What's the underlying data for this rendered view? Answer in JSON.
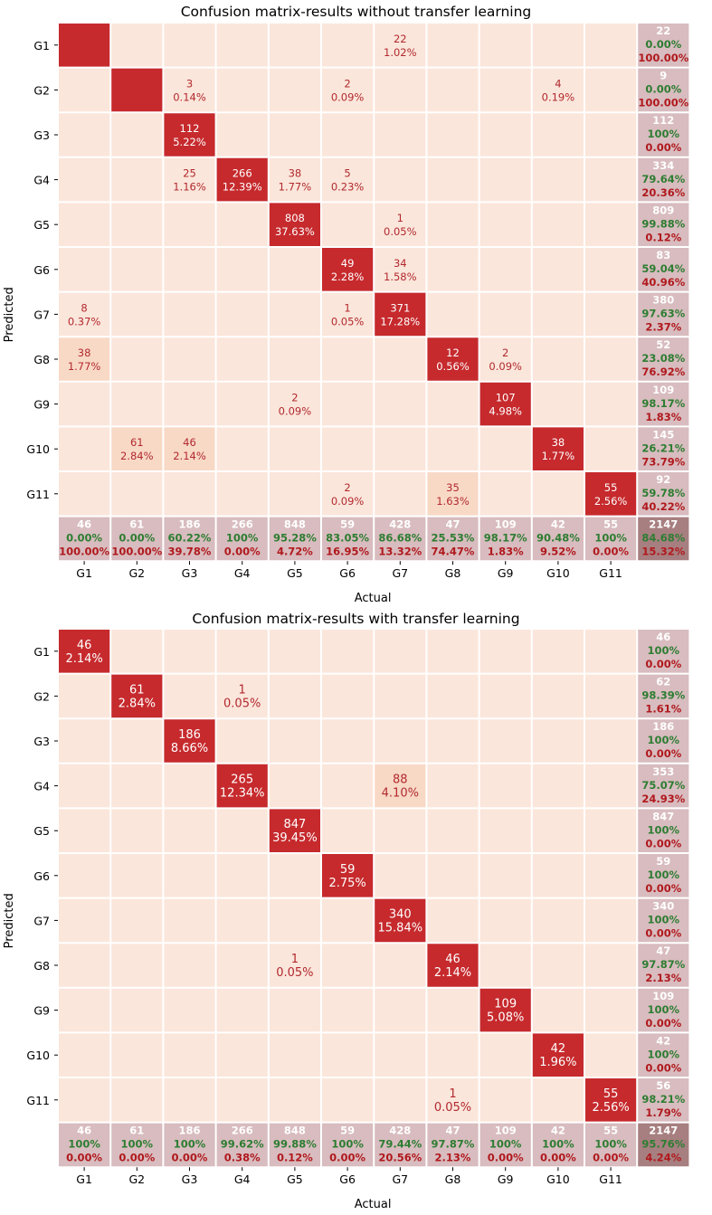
{
  "colors": {
    "background_cell": "#fbe6db",
    "light_cell": "#f8d9c6",
    "diagonal_cell": "#c62a2d",
    "summary_cell": "#d8bcbf",
    "corner_cell": "#a77f80",
    "cell_text_red": "#b2292e",
    "diag_text": "#ffffff",
    "summary_count_text": "#ffffff",
    "summary_good_text": "#2e7d32",
    "summary_bad_text": "#b0191d",
    "grid_line": "#ffffff"
  },
  "chart_data": [
    {
      "type": "heatmap",
      "title": "Confusion matrix-results without transfer learning",
      "xlabel": "Actual",
      "ylabel": "Predicted",
      "classes": [
        "G1",
        "G2",
        "G3",
        "G4",
        "G5",
        "G6",
        "G7",
        "G8",
        "G9",
        "G10",
        "G11"
      ],
      "cells": [
        {
          "r": 0,
          "c": 0,
          "n": "",
          "p": "",
          "diag": true
        },
        {
          "r": 0,
          "c": 6,
          "n": "22",
          "p": "1.02%"
        },
        {
          "r": 1,
          "c": 1,
          "n": "",
          "p": "",
          "diag": true
        },
        {
          "r": 1,
          "c": 2,
          "n": "3",
          "p": "0.14%"
        },
        {
          "r": 1,
          "c": 5,
          "n": "2",
          "p": "0.09%"
        },
        {
          "r": 1,
          "c": 9,
          "n": "4",
          "p": "0.19%"
        },
        {
          "r": 2,
          "c": 2,
          "n": "112",
          "p": "5.22%",
          "diag": true
        },
        {
          "r": 3,
          "c": 2,
          "n": "25",
          "p": "1.16%"
        },
        {
          "r": 3,
          "c": 3,
          "n": "266",
          "p": "12.39%",
          "diag": true
        },
        {
          "r": 3,
          "c": 4,
          "n": "38",
          "p": "1.77%"
        },
        {
          "r": 3,
          "c": 5,
          "n": "5",
          "p": "0.23%"
        },
        {
          "r": 4,
          "c": 4,
          "n": "808",
          "p": "37.63%",
          "diag": true
        },
        {
          "r": 4,
          "c": 6,
          "n": "1",
          "p": "0.05%"
        },
        {
          "r": 5,
          "c": 5,
          "n": "49",
          "p": "2.28%",
          "diag": true
        },
        {
          "r": 5,
          "c": 6,
          "n": "34",
          "p": "1.58%"
        },
        {
          "r": 6,
          "c": 0,
          "n": "8",
          "p": "0.37%"
        },
        {
          "r": 6,
          "c": 5,
          "n": "1",
          "p": "0.05%"
        },
        {
          "r": 6,
          "c": 6,
          "n": "371",
          "p": "17.28%",
          "diag": true
        },
        {
          "r": 7,
          "c": 0,
          "n": "38",
          "p": "1.77%",
          "light": true
        },
        {
          "r": 7,
          "c": 7,
          "n": "12",
          "p": "0.56%",
          "diag": true
        },
        {
          "r": 7,
          "c": 8,
          "n": "2",
          "p": "0.09%"
        },
        {
          "r": 8,
          "c": 4,
          "n": "2",
          "p": "0.09%"
        },
        {
          "r": 8,
          "c": 8,
          "n": "107",
          "p": "4.98%",
          "diag": true
        },
        {
          "r": 9,
          "c": 1,
          "n": "61",
          "p": "2.84%",
          "light": true
        },
        {
          "r": 9,
          "c": 2,
          "n": "46",
          "p": "2.14%",
          "light": true
        },
        {
          "r": 9,
          "c": 9,
          "n": "38",
          "p": "1.77%",
          "diag": true
        },
        {
          "r": 10,
          "c": 5,
          "n": "2",
          "p": "0.09%"
        },
        {
          "r": 10,
          "c": 7,
          "n": "35",
          "p": "1.63%",
          "light": true
        },
        {
          "r": 10,
          "c": 10,
          "n": "55",
          "p": "2.56%",
          "diag": true
        }
      ],
      "row_summary": [
        [
          "22",
          "0.00%",
          "100.00%"
        ],
        [
          "9",
          "0.00%",
          "100.00%"
        ],
        [
          "112",
          "100%",
          "0.00%"
        ],
        [
          "334",
          "79.64%",
          "20.36%"
        ],
        [
          "809",
          "99.88%",
          "0.12%"
        ],
        [
          "83",
          "59.04%",
          "40.96%"
        ],
        [
          "380",
          "97.63%",
          "2.37%"
        ],
        [
          "52",
          "23.08%",
          "76.92%"
        ],
        [
          "109",
          "98.17%",
          "1.83%"
        ],
        [
          "145",
          "26.21%",
          "73.79%"
        ],
        [
          "92",
          "59.78%",
          "40.22%"
        ]
      ],
      "col_summary": [
        [
          "46",
          "0.00%",
          "100.00%"
        ],
        [
          "61",
          "0.00%",
          "100.00%"
        ],
        [
          "186",
          "60.22%",
          "39.78%"
        ],
        [
          "266",
          "100%",
          "0.00%"
        ],
        [
          "848",
          "95.28%",
          "4.72%"
        ],
        [
          "59",
          "83.05%",
          "16.95%"
        ],
        [
          "428",
          "86.68%",
          "13.32%"
        ],
        [
          "47",
          "25.53%",
          "74.47%"
        ],
        [
          "109",
          "98.17%",
          "1.83%"
        ],
        [
          "42",
          "90.48%",
          "9.52%"
        ],
        [
          "55",
          "100%",
          "0.00%"
        ]
      ],
      "total": [
        "2147",
        "84.68%",
        "15.32%"
      ]
    },
    {
      "type": "heatmap",
      "title": "Confusion matrix-results with transfer learning",
      "xlabel": "Actual",
      "ylabel": "Predicted",
      "classes": [
        "G1",
        "G2",
        "G3",
        "G4",
        "G5",
        "G6",
        "G7",
        "G8",
        "G9",
        "G10",
        "G11"
      ],
      "cells": [
        {
          "r": 0,
          "c": 0,
          "n": "46",
          "p": "2.14%",
          "diag": true
        },
        {
          "r": 1,
          "c": 1,
          "n": "61",
          "p": "2.84%",
          "diag": true
        },
        {
          "r": 1,
          "c": 3,
          "n": "1",
          "p": "0.05%"
        },
        {
          "r": 2,
          "c": 2,
          "n": "186",
          "p": "8.66%",
          "diag": true
        },
        {
          "r": 3,
          "c": 3,
          "n": "265",
          "p": "12.34%",
          "diag": true
        },
        {
          "r": 3,
          "c": 6,
          "n": "88",
          "p": "4.10%",
          "light": true
        },
        {
          "r": 4,
          "c": 4,
          "n": "847",
          "p": "39.45%",
          "diag": true
        },
        {
          "r": 5,
          "c": 5,
          "n": "59",
          "p": "2.75%",
          "diag": true
        },
        {
          "r": 6,
          "c": 6,
          "n": "340",
          "p": "15.84%",
          "diag": true
        },
        {
          "r": 7,
          "c": 4,
          "n": "1",
          "p": "0.05%"
        },
        {
          "r": 7,
          "c": 7,
          "n": "46",
          "p": "2.14%",
          "diag": true
        },
        {
          "r": 8,
          "c": 8,
          "n": "109",
          "p": "5.08%",
          "diag": true
        },
        {
          "r": 9,
          "c": 9,
          "n": "42",
          "p": "1.96%",
          "diag": true
        },
        {
          "r": 10,
          "c": 7,
          "n": "1",
          "p": "0.05%"
        },
        {
          "r": 10,
          "c": 10,
          "n": "55",
          "p": "2.56%",
          "diag": true
        }
      ],
      "row_summary": [
        [
          "46",
          "100%",
          "0.00%"
        ],
        [
          "62",
          "98.39%",
          "1.61%"
        ],
        [
          "186",
          "100%",
          "0.00%"
        ],
        [
          "353",
          "75.07%",
          "24.93%"
        ],
        [
          "847",
          "100%",
          "0.00%"
        ],
        [
          "59",
          "100%",
          "0.00%"
        ],
        [
          "340",
          "100%",
          "0.00%"
        ],
        [
          "47",
          "97.87%",
          "2.13%"
        ],
        [
          "109",
          "100%",
          "0.00%"
        ],
        [
          "42",
          "100%",
          "0.00%"
        ],
        [
          "56",
          "98.21%",
          "1.79%"
        ]
      ],
      "col_summary": [
        [
          "46",
          "100%",
          "0.00%"
        ],
        [
          "61",
          "100%",
          "0.00%"
        ],
        [
          "186",
          "100%",
          "0.00%"
        ],
        [
          "266",
          "99.62%",
          "0.38%"
        ],
        [
          "848",
          "99.88%",
          "0.12%"
        ],
        [
          "59",
          "100%",
          "0.00%"
        ],
        [
          "428",
          "79.44%",
          "20.56%"
        ],
        [
          "47",
          "97.87%",
          "2.13%"
        ],
        [
          "109",
          "100%",
          "0.00%"
        ],
        [
          "42",
          "100%",
          "0.00%"
        ],
        [
          "55",
          "100%",
          "0.00%"
        ]
      ],
      "total": [
        "2147",
        "95.76%",
        "4.24%"
      ]
    }
  ]
}
